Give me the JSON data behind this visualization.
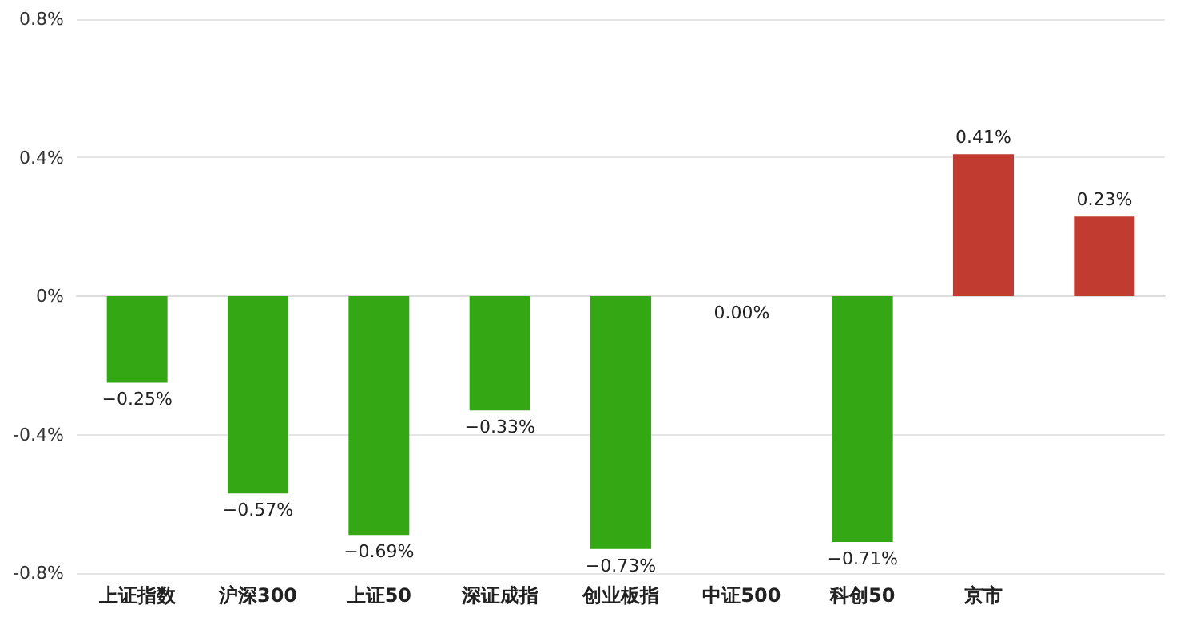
{
  "chart_data": {
    "type": "bar",
    "categories": [
      "上证指数",
      "沪深300",
      "上证50",
      "深证成指",
      "创业板指",
      "中证500",
      "科创50",
      "京市",
      null
    ],
    "values": [
      -0.25,
      -0.57,
      -0.69,
      -0.33,
      -0.73,
      0.0,
      -0.71,
      0.41,
      0.23
    ],
    "colors": [
      "#34a814",
      "#34a814",
      "#34a814",
      "#34a814",
      "#34a814",
      "#34a814",
      "#34a814",
      "#c23b31",
      "#c23b31"
    ],
    "value_labels": [
      "−0.25%",
      "−0.57%",
      "−0.69%",
      "−0.33%",
      "−0.73%",
      "0.00%",
      "−0.71%",
      "0.41%",
      "0.23%"
    ],
    "ylim": [
      -0.8,
      0.8
    ],
    "yticks": [
      {
        "value": -0.8,
        "label": "-0.8%"
      },
      {
        "value": -0.4,
        "label": "-0.4%"
      },
      {
        "value": 0,
        "label": "0%"
      },
      {
        "value": 0.4,
        "label": "0.4%"
      },
      {
        "value": 0.8,
        "label": "0.8%"
      }
    ],
    "grid": true
  }
}
